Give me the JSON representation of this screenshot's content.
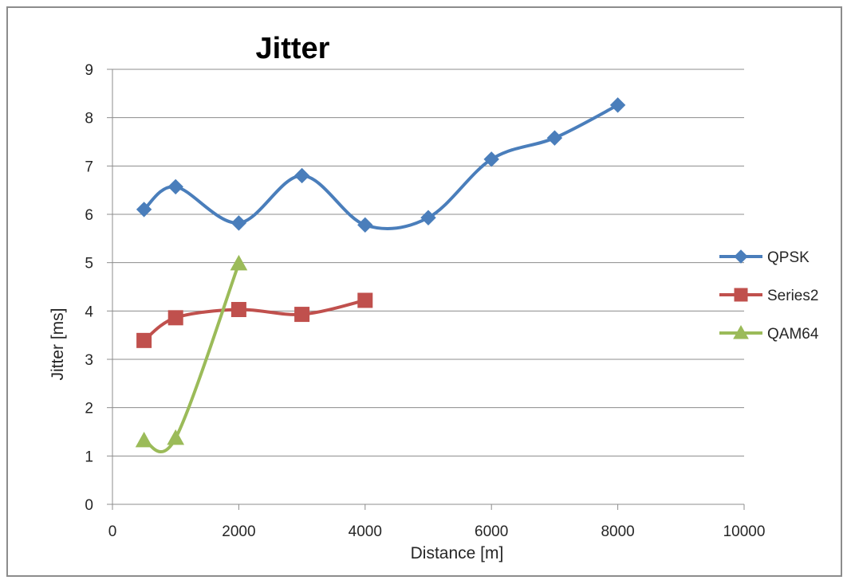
{
  "chart_data": {
    "type": "line",
    "title": "Jitter",
    "xlabel": "Distance [m]",
    "ylabel": "Jitter [ms]",
    "xlim": [
      0,
      10000
    ],
    "ylim": [
      0,
      9
    ],
    "x_ticks": [
      "0",
      "2000",
      "4000",
      "6000",
      "8000",
      "10000"
    ],
    "y_ticks": [
      "0",
      "1",
      "2",
      "3",
      "4",
      "5",
      "6",
      "7",
      "8",
      "9"
    ],
    "grid": "horizontal",
    "legend_position": "right",
    "smooth": true,
    "series": [
      {
        "name": "QPSK",
        "color": "#4a7ebb",
        "marker": "diamond",
        "x": [
          500,
          1000,
          2000,
          3000,
          4000,
          5000,
          6000,
          7000,
          8000
        ],
        "y": [
          6.1,
          6.57,
          5.82,
          6.8,
          5.78,
          5.93,
          7.14,
          7.58,
          8.26
        ]
      },
      {
        "name": "Series2",
        "color": "#c0504d",
        "marker": "square",
        "x": [
          500,
          1000,
          2000,
          3000,
          4000
        ],
        "y": [
          3.39,
          3.86,
          4.03,
          3.93,
          4.22
        ]
      },
      {
        "name": "QAM64",
        "color": "#9bbb59",
        "marker": "triangle",
        "x": [
          500,
          1000,
          2000
        ],
        "y": [
          1.32,
          1.37,
          4.98
        ]
      }
    ]
  }
}
